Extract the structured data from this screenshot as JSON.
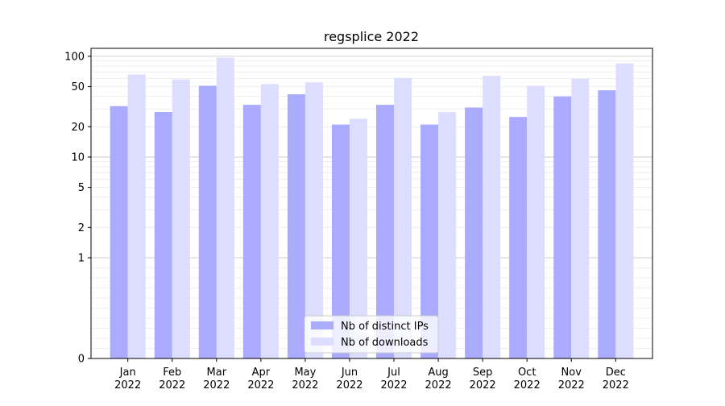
{
  "chart_data": {
    "type": "bar",
    "title": "regsplice 2022",
    "xlabel": "",
    "ylabel": "",
    "yscale": "symlog",
    "ylim": [
      0,
      120
    ],
    "yticks": [
      0,
      1,
      2,
      5,
      10,
      20,
      50,
      100
    ],
    "grid": true,
    "legend_position": "bottom-center",
    "categories": [
      "Jan\n2022",
      "Feb\n2022",
      "Mar\n2022",
      "Apr\n2022",
      "May\n2022",
      "Jun\n2022",
      "Jul\n2022",
      "Aug\n2022",
      "Sep\n2022",
      "Oct\n2022",
      "Nov\n2022",
      "Dec\n2022"
    ],
    "series": [
      {
        "name": "Nb of distinct IPs",
        "color": "#aaaaff",
        "values": [
          32,
          28,
          51,
          33,
          42,
          21,
          33,
          21,
          31,
          25,
          40,
          46
        ]
      },
      {
        "name": "Nb of downloads",
        "color": "#ddddff",
        "values": [
          66,
          59,
          97,
          53,
          55,
          24,
          61,
          28,
          64,
          51,
          60,
          85
        ]
      }
    ]
  }
}
